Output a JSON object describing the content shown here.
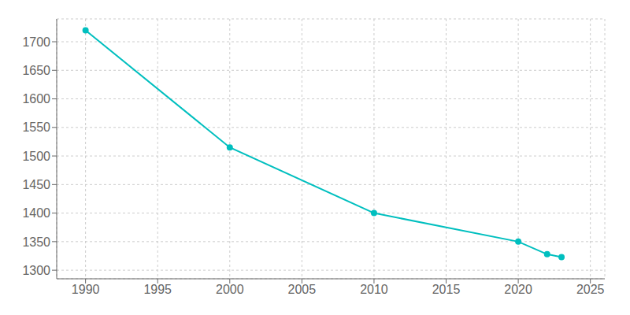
{
  "chart_data": {
    "type": "line",
    "x": [
      1990,
      2000,
      2010,
      2020,
      2022,
      2023
    ],
    "values": [
      1720,
      1515,
      1400,
      1350,
      1328,
      1323
    ],
    "color": "#00BFBF",
    "marker": "circle",
    "xlim": [
      1988,
      2026
    ],
    "ylim": [
      1285,
      1740
    ],
    "xticks": [
      1990,
      1995,
      2000,
      2005,
      2010,
      2015,
      2020,
      2025
    ],
    "yticks": [
      1300,
      1350,
      1400,
      1450,
      1500,
      1550,
      1600,
      1650,
      1700
    ],
    "grid": true
  }
}
